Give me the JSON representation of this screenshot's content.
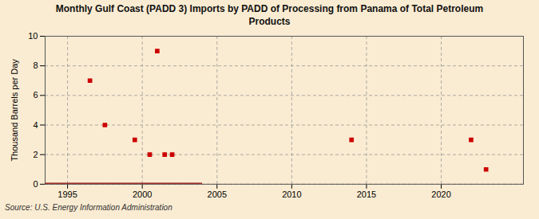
{
  "chart_data": {
    "type": "scatter",
    "title": "Monthly Gulf Coast (PADD 3) Imports by PADD of Processing from Panama of Total Petroleum\nProducts",
    "ylabel": "Thousand Barrels per Day",
    "source": "Source: U.S. Energy Information Administration",
    "xlim": [
      1993.5,
      2025.5
    ],
    "ylim": [
      0,
      10
    ],
    "xticks": [
      1995,
      2000,
      2005,
      2010,
      2015,
      2020
    ],
    "yticks": [
      0,
      2,
      4,
      6,
      8,
      10
    ],
    "grid": true,
    "series": [
      {
        "type": "line",
        "color": "#8b0000",
        "x": [
          1993.5,
          2004.0
        ],
        "values": [
          0,
          0
        ]
      },
      {
        "type": "scatter",
        "color": "#cc0000",
        "marker": "square",
        "x": [
          1996.5,
          1997.5,
          1999.5,
          2000.5,
          2001.0,
          2001.5,
          2002.0,
          2014.0,
          2022.0,
          2023.0
        ],
        "values": [
          7.0,
          4.0,
          3.0,
          2.0,
          9.0,
          2.0,
          2.0,
          3.0,
          3.0,
          1.0
        ]
      }
    ]
  }
}
